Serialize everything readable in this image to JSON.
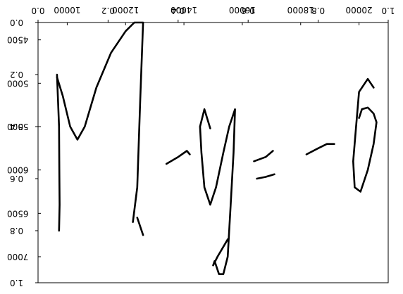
{
  "chart_data": {
    "type": "line",
    "title": "",
    "xlabel": "",
    "ylabel": "",
    "note": "Handwritten expression 'M-q=-6' plotted as ink strokes; two overlapping axis systems are drawn, one mirrored/flipped.",
    "outer_axes": {
      "x_ticks": [
        "0.0",
        "0.2",
        "0.4",
        "0.6",
        "0.8",
        "1.0"
      ],
      "y_ticks": [
        "0.0",
        "0.2",
        "0.4",
        "0.6",
        "0.8",
        "1.0"
      ],
      "xlim": [
        0,
        1
      ],
      "ylim": [
        0,
        1
      ]
    },
    "inner_axes": {
      "x_ticks": [
        "10000",
        "12000",
        "14000",
        "16000",
        "18000",
        "20000"
      ],
      "x_tick_labels_shown": [
        "0.0",
        "10000",
        "12000",
        "14000",
        "16000",
        "18000",
        "20000",
        "0.0",
        "1.0"
      ],
      "y_ticks": [
        "4500",
        "5000",
        "5500",
        "6000",
        "6500",
        "7000"
      ],
      "xlim": [
        9000,
        21000
      ],
      "ylim": [
        7300,
        4300
      ],
      "inverted_y": true
    },
    "stroke_color": "#000000",
    "series": [
      {
        "x": [
          9650,
          9720,
          9730,
          9740,
          9720
        ],
        "y": [
          4900,
          5500,
          6000,
          6400,
          6700
        ],
        "stroke": "M-left"
      },
      {
        "x": [
          9650,
          9850,
          10100,
          10350,
          10600,
          11000,
          11500,
          12000,
          12300,
          12600,
          12500,
          12400,
          12250
        ],
        "y": [
          4930,
          5150,
          5500,
          5650,
          5500,
          5050,
          4650,
          4400,
          4300,
          4300,
          5200,
          6200,
          6600
        ],
        "stroke": "M-right"
      },
      {
        "x": [
          12400,
          12600
        ],
        "y": [
          6550,
          6750
        ],
        "stroke": "M-tail"
      },
      {
        "x": [
          13400,
          13800,
          14100,
          14200
        ],
        "y": [
          5930,
          5850,
          5780,
          5820
        ],
        "stroke": "minus-1"
      },
      {
        "x": [
          14900,
          14700,
          14550,
          14600,
          14700,
          14900,
          15100,
          15350,
          15550,
          15750,
          15700,
          15600,
          15500,
          15350,
          15200,
          15050,
          15000,
          15150,
          15500
        ],
        "y": [
          5520,
          5300,
          5500,
          5800,
          6200,
          6400,
          6200,
          5800,
          5500,
          5300,
          5800,
          6400,
          7000,
          7200,
          7200,
          7050,
          7100,
          7000,
          6800
        ],
        "stroke": "q"
      },
      {
        "x": [
          16400,
          16800,
          17050
        ],
        "y": [
          5900,
          5850,
          5780
        ],
        "stroke": "eq-top"
      },
      {
        "x": [
          16500,
          16800,
          17100
        ],
        "y": [
          6100,
          6080,
          6050
        ],
        "stroke": "eq-bottom"
      },
      {
        "x": [
          18200,
          18600,
          18900,
          19150
        ],
        "y": [
          5820,
          5750,
          5700,
          5700
        ],
        "stroke": "minus-2"
      },
      {
        "x": [
          20500,
          20300,
          20000,
          19900,
          19800,
          19850,
          20050,
          20300,
          20500,
          20600,
          20500,
          20300,
          20100,
          20000
        ],
        "y": [
          5050,
          4950,
          5100,
          5500,
          5900,
          6200,
          6250,
          6000,
          5700,
          5450,
          5350,
          5280,
          5300,
          5400
        ],
        "stroke": "six"
      }
    ]
  }
}
